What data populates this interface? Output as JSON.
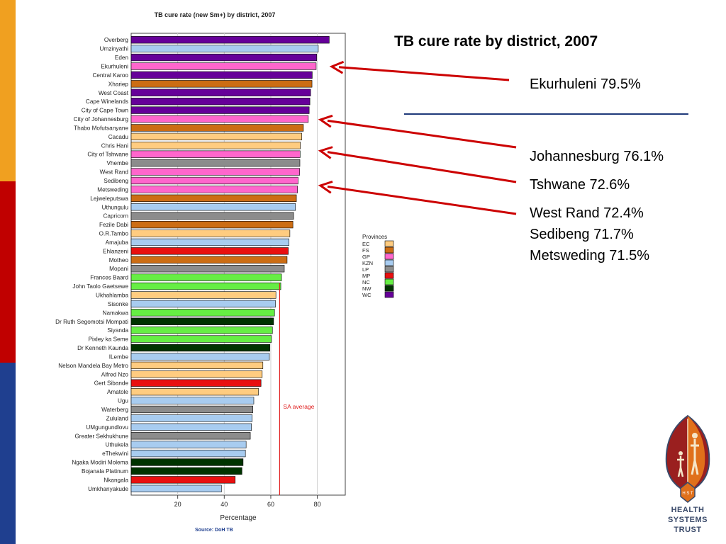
{
  "slide": {
    "title": "TB cure rate by district, 2007",
    "callouts": [
      "Ekurhuleni 79.5%",
      "Johannesburg 76.1%",
      "Tshwane 72.6%",
      "West Rand 72.4%",
      "Sedibeng 71.7%",
      "Metsweding 71.5%"
    ],
    "logo": {
      "line1": "HEALTH",
      "line2": "SYSTEMS",
      "line3": "TRUST",
      "badge": "H S T"
    },
    "stripe_colors": [
      "#f0a020",
      "#c00000",
      "#1f3f8f"
    ]
  },
  "chart_data": {
    "type": "bar",
    "orientation": "horizontal",
    "title": "TB cure rate (new Sm+) by district, 2007",
    "xlabel": "Percentage",
    "source": "Source: DoH TB",
    "xlim": [
      0,
      92
    ],
    "xticks": [
      20,
      40,
      60,
      80
    ],
    "grid": true,
    "reference_line": {
      "label": "SA average",
      "value": 63.8,
      "color": "#e02020"
    },
    "legend": {
      "title": "Provinces",
      "placement": "right",
      "items": [
        {
          "key": "EC",
          "color": "#ffcc80"
        },
        {
          "key": "FS",
          "color": "#cc6d14"
        },
        {
          "key": "GP",
          "color": "#ff66cc"
        },
        {
          "key": "KZN",
          "color": "#a8ccf0"
        },
        {
          "key": "LP",
          "color": "#8c8c8c"
        },
        {
          "key": "MP",
          "color": "#e81010"
        },
        {
          "key": "NC",
          "color": "#66ee44"
        },
        {
          "key": "NW",
          "color": "#003300"
        },
        {
          "key": "WC",
          "color": "#660099"
        }
      ]
    },
    "categories": [
      "Overberg",
      "Umzinyathi",
      "Eden",
      "Ekurhuleni",
      "Central Karoo",
      "Xhariep",
      "West Coast",
      "Cape Winelands",
      "City of Cape Town",
      "City of Johannesburg",
      "Thabo Mofutsanyane",
      "Cacadu",
      "Chris Hani",
      "City of Tshwane",
      "Vhembe",
      "West Rand",
      "Sedibeng",
      "Metsweding",
      "Lejweleputswa",
      "Uthungulu",
      "Capricorn",
      "Fezile Dabi",
      "O.R.Tambo",
      "Amajuba",
      "Ehlanzeni",
      "Motheo",
      "Mopani",
      "Frances Baard",
      "John Taolo Gaetsewe",
      "Ukhahlamba",
      "Sisonke",
      "Namakwa",
      "Dr Ruth Segomotsi Mompati",
      "Siyanda",
      "Pixley ka Seme",
      "Dr Kenneth Kaunda",
      "ILembe",
      "Nelson Mandela Bay Metro",
      "Alfred Nzo",
      "Gert Sibande",
      "Amatole",
      "Ugu",
      "Waterberg",
      "Zululand",
      "UMgungundlovu",
      "Greater Sekhukhune",
      "Uthukela",
      "eThekwini",
      "Ngaka Modiri Molema",
      "Bojanala Platinum",
      "Nkangala",
      "Umkhanyakude"
    ],
    "values": [
      85.1,
      80.4,
      79.7,
      79.5,
      77.8,
      77.7,
      77.1,
      76.8,
      76.5,
      76.1,
      74.0,
      73.3,
      72.7,
      72.6,
      72.5,
      72.4,
      71.7,
      71.5,
      71.0,
      70.6,
      69.8,
      69.5,
      68.2,
      67.8,
      67.5,
      67.0,
      65.8,
      64.6,
      64.3,
      62.2,
      62.0,
      61.6,
      61.2,
      60.7,
      60.3,
      59.6,
      59.4,
      56.6,
      56.3,
      55.8,
      54.7,
      52.7,
      52.3,
      52.0,
      51.7,
      51.2,
      49.4,
      49.1,
      48.1,
      47.6,
      44.7,
      38.8
    ],
    "provinces": [
      "WC",
      "KZN",
      "WC",
      "GP",
      "WC",
      "FS",
      "WC",
      "WC",
      "WC",
      "GP",
      "FS",
      "EC",
      "EC",
      "GP",
      "LP",
      "GP",
      "GP",
      "GP",
      "FS",
      "KZN",
      "LP",
      "FS",
      "EC",
      "KZN",
      "MP",
      "FS",
      "LP",
      "NC",
      "NC",
      "EC",
      "KZN",
      "NC",
      "NW",
      "NC",
      "NC",
      "NW",
      "KZN",
      "EC",
      "EC",
      "MP",
      "EC",
      "KZN",
      "LP",
      "KZN",
      "KZN",
      "LP",
      "KZN",
      "KZN",
      "NW",
      "NW",
      "MP",
      "KZN"
    ]
  }
}
